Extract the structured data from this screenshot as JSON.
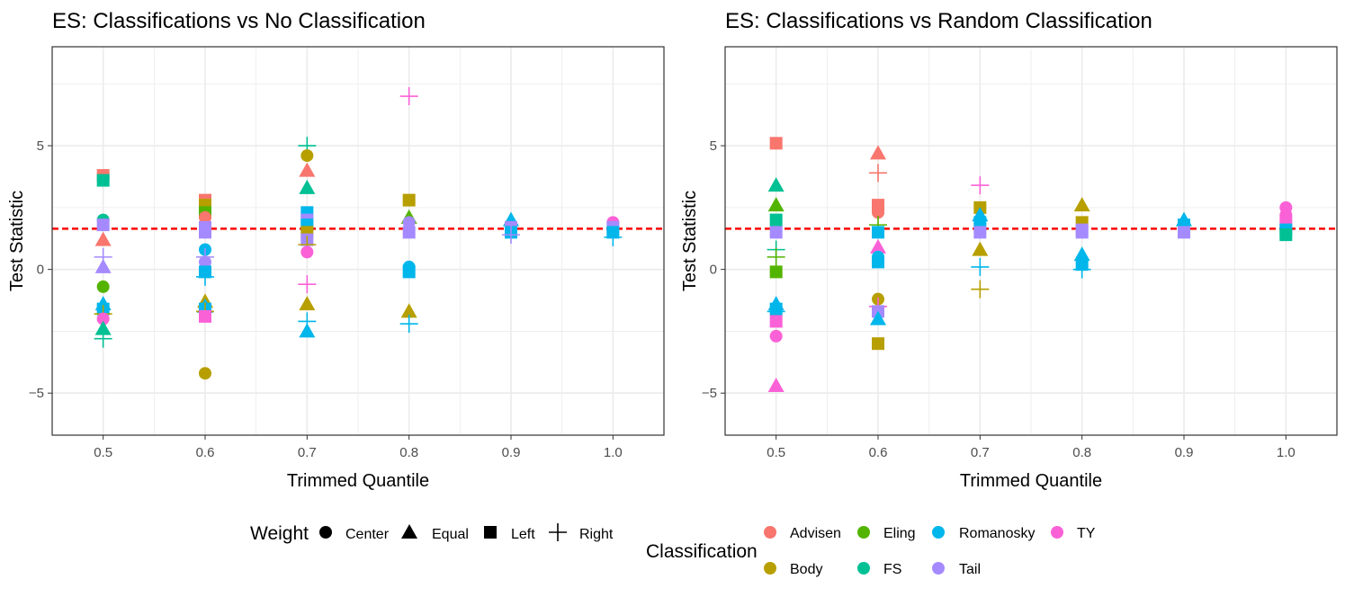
{
  "colors": {
    "Advisen": "#F8766D",
    "Body": "#B79F00",
    "Eling": "#53B400",
    "FS": "#00C094",
    "Romanosky": "#00B6EB",
    "Tail": "#A58AFF",
    "TY": "#FB61D7",
    "threshold_line": "#FF0000",
    "grid": "#EBEBEB",
    "panel_border": "#333333"
  },
  "legend": {
    "weight": {
      "title": "Weight",
      "items": [
        {
          "label": "Center",
          "shape": "circle"
        },
        {
          "label": "Equal",
          "shape": "triangle"
        },
        {
          "label": "Left",
          "shape": "square"
        },
        {
          "label": "Right",
          "shape": "plus"
        }
      ]
    },
    "classification": {
      "title": "Classification",
      "items": [
        {
          "label": "Advisen",
          "color_key": "Advisen"
        },
        {
          "label": "Eling",
          "color_key": "Eling"
        },
        {
          "label": "Romanosky",
          "color_key": "Romanosky"
        },
        {
          "label": "TY",
          "color_key": "TY"
        },
        {
          "label": "Body",
          "color_key": "Body"
        },
        {
          "label": "FS",
          "color_key": "FS"
        },
        {
          "label": "Tail",
          "color_key": "Tail"
        }
      ]
    }
  },
  "chart_data": [
    {
      "type": "scatter",
      "title": "ES: Classifications vs No Classification",
      "xlabel": "Trimmed Quantile",
      "ylabel": "Test Statistic",
      "xlim": [
        0.45,
        1.05
      ],
      "ylim": [
        -6.7,
        9.0
      ],
      "xticks": [
        0.5,
        0.6,
        0.7,
        0.8,
        0.9,
        1.0
      ],
      "xtick_labels": [
        "0.5",
        "0.6",
        "0.7",
        "0.8",
        "0.9",
        "1.0"
      ],
      "yticks": [
        -5,
        0,
        5
      ],
      "ytick_labels": [
        "−5",
        "0",
        "5"
      ],
      "reference_line": 1.645,
      "grid": true,
      "points": [
        {
          "x": 0.5,
          "y": 3.8,
          "shape": "square",
          "cls": "Advisen"
        },
        {
          "x": 0.5,
          "y": 3.6,
          "shape": "square",
          "cls": "FS"
        },
        {
          "x": 0.5,
          "y": 2.0,
          "shape": "circle",
          "cls": "FS"
        },
        {
          "x": 0.5,
          "y": 1.8,
          "shape": "square",
          "cls": "Tail"
        },
        {
          "x": 0.5,
          "y": 1.2,
          "shape": "triangle",
          "cls": "Advisen"
        },
        {
          "x": 0.5,
          "y": 0.5,
          "shape": "plus",
          "cls": "Tail"
        },
        {
          "x": 0.5,
          "y": 0.1,
          "shape": "triangle",
          "cls": "Tail"
        },
        {
          "x": 0.5,
          "y": -0.7,
          "shape": "circle",
          "cls": "Eling"
        },
        {
          "x": 0.5,
          "y": -1.4,
          "shape": "triangle",
          "cls": "Romanosky"
        },
        {
          "x": 0.5,
          "y": -1.6,
          "shape": "square",
          "cls": "Romanosky"
        },
        {
          "x": 0.5,
          "y": -1.8,
          "shape": "plus",
          "cls": "Body"
        },
        {
          "x": 0.5,
          "y": -2.0,
          "shape": "circle",
          "cls": "TY"
        },
        {
          "x": 0.5,
          "y": -2.4,
          "shape": "triangle",
          "cls": "FS"
        },
        {
          "x": 0.5,
          "y": -2.8,
          "shape": "plus",
          "cls": "FS"
        },
        {
          "x": 0.6,
          "y": 2.8,
          "shape": "square",
          "cls": "Advisen"
        },
        {
          "x": 0.6,
          "y": 2.6,
          "shape": "square",
          "cls": "Body"
        },
        {
          "x": 0.6,
          "y": 2.3,
          "shape": "square",
          "cls": "Eling"
        },
        {
          "x": 0.6,
          "y": 2.1,
          "shape": "circle",
          "cls": "Advisen"
        },
        {
          "x": 0.6,
          "y": 1.7,
          "shape": "square",
          "cls": "Tail"
        },
        {
          "x": 0.6,
          "y": 1.5,
          "shape": "square",
          "cls": "Tail"
        },
        {
          "x": 0.6,
          "y": 0.8,
          "shape": "circle",
          "cls": "Romanosky"
        },
        {
          "x": 0.6,
          "y": 0.5,
          "shape": "plus",
          "cls": "Tail"
        },
        {
          "x": 0.6,
          "y": 0.3,
          "shape": "circle",
          "cls": "Tail"
        },
        {
          "x": 0.6,
          "y": -0.1,
          "shape": "square",
          "cls": "Romanosky"
        },
        {
          "x": 0.6,
          "y": -0.3,
          "shape": "plus",
          "cls": "Romanosky"
        },
        {
          "x": 0.6,
          "y": -1.3,
          "shape": "triangle",
          "cls": "Body"
        },
        {
          "x": 0.6,
          "y": -1.5,
          "shape": "triangle",
          "cls": "Romanosky"
        },
        {
          "x": 0.6,
          "y": -1.6,
          "shape": "square",
          "cls": "Romanosky"
        },
        {
          "x": 0.6,
          "y": -1.7,
          "shape": "plus",
          "cls": "Body"
        },
        {
          "x": 0.6,
          "y": -1.9,
          "shape": "square",
          "cls": "TY"
        },
        {
          "x": 0.6,
          "y": -4.2,
          "shape": "circle",
          "cls": "Body"
        },
        {
          "x": 0.7,
          "y": 5.0,
          "shape": "plus",
          "cls": "FS"
        },
        {
          "x": 0.7,
          "y": 4.6,
          "shape": "circle",
          "cls": "Body"
        },
        {
          "x": 0.7,
          "y": 4.0,
          "shape": "triangle",
          "cls": "Advisen"
        },
        {
          "x": 0.7,
          "y": 3.3,
          "shape": "triangle",
          "cls": "FS"
        },
        {
          "x": 0.7,
          "y": 2.3,
          "shape": "square",
          "cls": "Romanosky"
        },
        {
          "x": 0.7,
          "y": 2.0,
          "shape": "square",
          "cls": "Tail"
        },
        {
          "x": 0.7,
          "y": 1.8,
          "shape": "square",
          "cls": "Romanosky"
        },
        {
          "x": 0.7,
          "y": 1.5,
          "shape": "square",
          "cls": "Body"
        },
        {
          "x": 0.7,
          "y": 1.2,
          "shape": "square",
          "cls": "Tail"
        },
        {
          "x": 0.7,
          "y": 1.0,
          "shape": "plus",
          "cls": "Body"
        },
        {
          "x": 0.7,
          "y": 0.7,
          "shape": "circle",
          "cls": "TY"
        },
        {
          "x": 0.7,
          "y": -0.6,
          "shape": "plus",
          "cls": "TY"
        },
        {
          "x": 0.7,
          "y": -1.4,
          "shape": "triangle",
          "cls": "Body"
        },
        {
          "x": 0.7,
          "y": -2.1,
          "shape": "plus",
          "cls": "Romanosky"
        },
        {
          "x": 0.7,
          "y": -2.5,
          "shape": "triangle",
          "cls": "Romanosky"
        },
        {
          "x": 0.8,
          "y": 7.0,
          "shape": "plus",
          "cls": "TY"
        },
        {
          "x": 0.8,
          "y": 2.8,
          "shape": "square",
          "cls": "Body"
        },
        {
          "x": 0.8,
          "y": 2.1,
          "shape": "triangle",
          "cls": "Eling"
        },
        {
          "x": 0.8,
          "y": 1.9,
          "shape": "circle",
          "cls": "Tail"
        },
        {
          "x": 0.8,
          "y": 1.5,
          "shape": "square",
          "cls": "Tail"
        },
        {
          "x": 0.8,
          "y": 0.1,
          "shape": "circle",
          "cls": "Romanosky"
        },
        {
          "x": 0.8,
          "y": -0.1,
          "shape": "square",
          "cls": "Romanosky"
        },
        {
          "x": 0.8,
          "y": -1.7,
          "shape": "triangle",
          "cls": "Body"
        },
        {
          "x": 0.8,
          "y": -2.2,
          "shape": "plus",
          "cls": "Romanosky"
        },
        {
          "x": 0.9,
          "y": 2.0,
          "shape": "triangle",
          "cls": "Romanosky"
        },
        {
          "x": 0.9,
          "y": 1.7,
          "shape": "square",
          "cls": "Tail"
        },
        {
          "x": 0.9,
          "y": 1.5,
          "shape": "square",
          "cls": "Romanosky"
        },
        {
          "x": 0.9,
          "y": 1.4,
          "shape": "plus",
          "cls": "Tail"
        },
        {
          "x": 1.0,
          "y": 1.9,
          "shape": "circle",
          "cls": "TY"
        },
        {
          "x": 1.0,
          "y": 1.7,
          "shape": "square",
          "cls": "Tail"
        },
        {
          "x": 1.0,
          "y": 1.5,
          "shape": "square",
          "cls": "Romanosky"
        },
        {
          "x": 1.0,
          "y": 1.3,
          "shape": "plus",
          "cls": "Romanosky"
        }
      ]
    },
    {
      "type": "scatter",
      "title": "ES: Classifications vs Random Classification",
      "xlabel": "Trimmed Quantile",
      "ylabel": "Test Statistic",
      "xlim": [
        0.45,
        1.05
      ],
      "ylim": [
        -6.7,
        9.0
      ],
      "xticks": [
        0.5,
        0.6,
        0.7,
        0.8,
        0.9,
        1.0
      ],
      "xtick_labels": [
        "0.5",
        "0.6",
        "0.7",
        "0.8",
        "0.9",
        "1.0"
      ],
      "yticks": [
        -5,
        0,
        5
      ],
      "ytick_labels": [
        "−5",
        "0",
        "5"
      ],
      "reference_line": 1.645,
      "grid": true,
      "points": [
        {
          "x": 0.5,
          "y": 5.1,
          "shape": "square",
          "cls": "Advisen"
        },
        {
          "x": 0.5,
          "y": 3.4,
          "shape": "triangle",
          "cls": "FS"
        },
        {
          "x": 0.5,
          "y": 2.6,
          "shape": "triangle",
          "cls": "Eling"
        },
        {
          "x": 0.5,
          "y": 2.0,
          "shape": "square",
          "cls": "FS"
        },
        {
          "x": 0.5,
          "y": 1.5,
          "shape": "square",
          "cls": "Tail"
        },
        {
          "x": 0.5,
          "y": 0.8,
          "shape": "plus",
          "cls": "FS"
        },
        {
          "x": 0.5,
          "y": 0.5,
          "shape": "plus",
          "cls": "Eling"
        },
        {
          "x": 0.5,
          "y": -0.1,
          "shape": "square",
          "cls": "Eling"
        },
        {
          "x": 0.5,
          "y": -1.4,
          "shape": "triangle",
          "cls": "Romanosky"
        },
        {
          "x": 0.5,
          "y": -1.6,
          "shape": "square",
          "cls": "Romanosky"
        },
        {
          "x": 0.5,
          "y": -1.7,
          "shape": "plus",
          "cls": "Romanosky"
        },
        {
          "x": 0.5,
          "y": -2.1,
          "shape": "square",
          "cls": "TY"
        },
        {
          "x": 0.5,
          "y": -2.7,
          "shape": "circle",
          "cls": "TY"
        },
        {
          "x": 0.5,
          "y": -4.7,
          "shape": "triangle",
          "cls": "TY"
        },
        {
          "x": 0.6,
          "y": 4.7,
          "shape": "triangle",
          "cls": "Advisen"
        },
        {
          "x": 0.6,
          "y": 3.9,
          "shape": "plus",
          "cls": "Advisen"
        },
        {
          "x": 0.6,
          "y": 2.6,
          "shape": "square",
          "cls": "Advisen"
        },
        {
          "x": 0.6,
          "y": 2.3,
          "shape": "circle",
          "cls": "Advisen"
        },
        {
          "x": 0.6,
          "y": 1.8,
          "shape": "plus",
          "cls": "Eling"
        },
        {
          "x": 0.6,
          "y": 1.5,
          "shape": "square",
          "cls": "Romanosky"
        },
        {
          "x": 0.6,
          "y": 0.9,
          "shape": "triangle",
          "cls": "TY"
        },
        {
          "x": 0.6,
          "y": 0.5,
          "shape": "circle",
          "cls": "Romanosky"
        },
        {
          "x": 0.6,
          "y": 0.3,
          "shape": "square",
          "cls": "Romanosky"
        },
        {
          "x": 0.6,
          "y": -1.2,
          "shape": "circle",
          "cls": "Body"
        },
        {
          "x": 0.6,
          "y": -1.5,
          "shape": "plus",
          "cls": "TY"
        },
        {
          "x": 0.6,
          "y": -1.7,
          "shape": "square",
          "cls": "Tail"
        },
        {
          "x": 0.6,
          "y": -2.0,
          "shape": "triangle",
          "cls": "Romanosky"
        },
        {
          "x": 0.6,
          "y": -3.0,
          "shape": "square",
          "cls": "Body"
        },
        {
          "x": 0.7,
          "y": 3.4,
          "shape": "plus",
          "cls": "TY"
        },
        {
          "x": 0.7,
          "y": 2.5,
          "shape": "square",
          "cls": "Body"
        },
        {
          "x": 0.7,
          "y": 2.2,
          "shape": "triangle",
          "cls": "Romanosky"
        },
        {
          "x": 0.7,
          "y": 1.9,
          "shape": "square",
          "cls": "Romanosky"
        },
        {
          "x": 0.7,
          "y": 1.5,
          "shape": "square",
          "cls": "Tail"
        },
        {
          "x": 0.7,
          "y": 0.8,
          "shape": "triangle",
          "cls": "Body"
        },
        {
          "x": 0.7,
          "y": 0.1,
          "shape": "plus",
          "cls": "Romanosky"
        },
        {
          "x": 0.7,
          "y": -0.8,
          "shape": "plus",
          "cls": "Body"
        },
        {
          "x": 0.8,
          "y": 2.6,
          "shape": "triangle",
          "cls": "Body"
        },
        {
          "x": 0.8,
          "y": 1.9,
          "shape": "square",
          "cls": "Body"
        },
        {
          "x": 0.8,
          "y": 1.6,
          "shape": "square",
          "cls": "Tail"
        },
        {
          "x": 0.8,
          "y": 1.5,
          "shape": "square",
          "cls": "Tail"
        },
        {
          "x": 0.8,
          "y": 0.6,
          "shape": "triangle",
          "cls": "Romanosky"
        },
        {
          "x": 0.8,
          "y": 0.2,
          "shape": "square",
          "cls": "Romanosky"
        },
        {
          "x": 0.8,
          "y": 0.0,
          "shape": "plus",
          "cls": "Romanosky"
        },
        {
          "x": 0.9,
          "y": 2.0,
          "shape": "triangle",
          "cls": "Romanosky"
        },
        {
          "x": 0.9,
          "y": 1.8,
          "shape": "square",
          "cls": "Romanosky"
        },
        {
          "x": 0.9,
          "y": 1.5,
          "shape": "square",
          "cls": "Tail"
        },
        {
          "x": 1.0,
          "y": 2.5,
          "shape": "circle",
          "cls": "TY"
        },
        {
          "x": 1.0,
          "y": 2.2,
          "shape": "circle",
          "cls": "TY"
        },
        {
          "x": 1.0,
          "y": 1.9,
          "shape": "square",
          "cls": "TY"
        },
        {
          "x": 1.0,
          "y": 1.6,
          "shape": "square",
          "cls": "Romanosky"
        },
        {
          "x": 1.0,
          "y": 1.4,
          "shape": "square",
          "cls": "FS"
        }
      ]
    }
  ]
}
